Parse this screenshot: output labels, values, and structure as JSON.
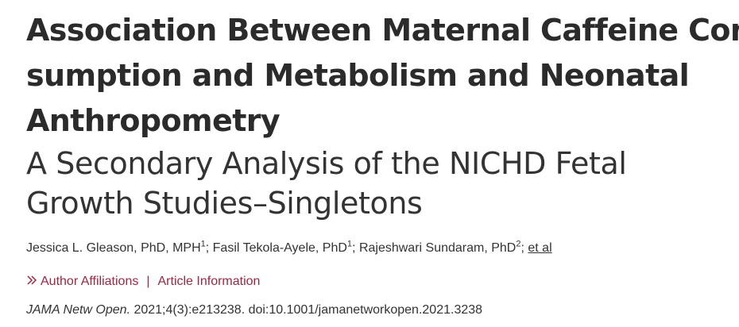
{
  "article": {
    "title_lines": [
      "Association Between Maternal Caffeine Con-",
      "sumption and Metabolism and Neonatal",
      "Anthropometry"
    ],
    "subtitle_lines": [
      "A Secondary Analysis of the NICHD Fetal",
      "Growth Studies–Singletons"
    ],
    "authors": [
      {
        "name": "Jessica L. Gleason, PhD, MPH",
        "affil": "1",
        "sep": "; "
      },
      {
        "name": "Fasil Tekola-Ayele, PhD",
        "affil": "1",
        "sep": "; "
      },
      {
        "name": "Rajeshwari Sundaram, PhD",
        "affil": "2",
        "sep": "; "
      }
    ],
    "et_al": "et al",
    "links": {
      "author_affiliations": "Author Affiliations",
      "separator": "|",
      "article_information": "Article Information",
      "chevron_icon": "double-chevron-right-icon",
      "link_color": "#9b2743"
    },
    "citation": {
      "journal": "JAMA Netw Open.",
      "details": " 2021;4(3):e213238. doi:10.1001/jamanetworkopen.2021.3238"
    }
  }
}
